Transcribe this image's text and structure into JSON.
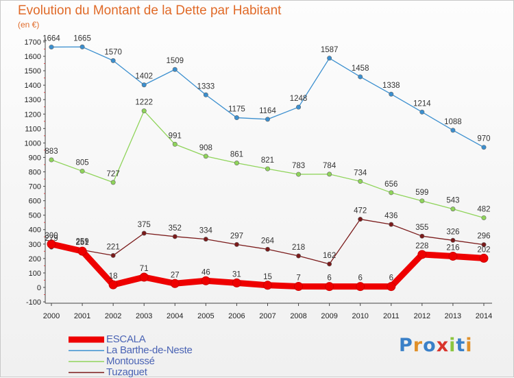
{
  "chart_data": {
    "type": "line",
    "title": "Evolution du Montant de la Dette par Habitant",
    "unit_label": "(en €)",
    "x": [
      "2000",
      "2001",
      "2002",
      "2003",
      "2004",
      "2005",
      "2006",
      "2007",
      "2008",
      "2009",
      "2010",
      "2011",
      "2012",
      "2013",
      "2014"
    ],
    "ylim": [
      -100,
      1700
    ],
    "yticks": [
      -100,
      0,
      100,
      200,
      300,
      400,
      500,
      600,
      700,
      800,
      900,
      1000,
      1100,
      1200,
      1300,
      1400,
      1500,
      1600,
      1700
    ],
    "grid": false,
    "legend_position": "bottom-left",
    "series": [
      {
        "name": "ESCALA",
        "color": "#ee0000",
        "values": [
          300,
          251,
          18,
          71,
          27,
          46,
          31,
          15,
          7,
          6,
          6,
          6,
          228,
          216,
          202
        ]
      },
      {
        "name": "La Barthe-de-Neste",
        "color": "#3b8fcf",
        "values": [
          1664,
          1665,
          1570,
          1402,
          1509,
          1333,
          1175,
          1164,
          1248,
          1587,
          1458,
          1338,
          1214,
          1088,
          970
        ]
      },
      {
        "name": "Montoussé",
        "color": "#8fd45a",
        "values": [
          883,
          805,
          727,
          1222,
          991,
          908,
          861,
          821,
          783,
          784,
          734,
          656,
          599,
          543,
          482
        ]
      },
      {
        "name": "Tuzaguet",
        "color": "#7a1a1a",
        "values": [
          279,
          259,
          221,
          375,
          352,
          334,
          297,
          264,
          218,
          162,
          472,
          436,
          355,
          326,
          296
        ]
      }
    ]
  },
  "logo": {
    "letters": [
      "P",
      "r",
      "o",
      "x",
      "i",
      "t",
      "i"
    ]
  }
}
